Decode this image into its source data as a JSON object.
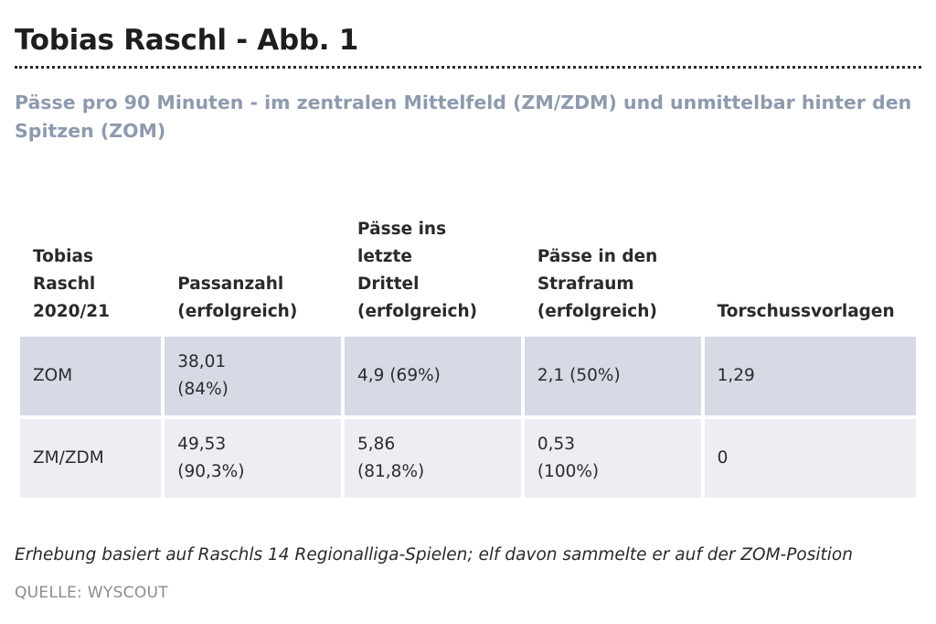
{
  "title": "Tobias Raschl - Abb. 1",
  "subtitle": "Pässe pro 90 Minuten - im zentralen Mittelfeld (ZM/ZDM) und unmittelbar hinter den Spitzen (ZOM)",
  "table": {
    "headers": [
      [
        "Tobias",
        "Raschl",
        "2020/21"
      ],
      [
        "Passanzahl",
        "(erfolgreich)"
      ],
      [
        "Pässe ins",
        "letzte",
        "Drittel",
        "(erfolgreich)"
      ],
      [
        "Pässe in den",
        "Strafraum",
        "(erfolgreich)"
      ],
      [
        "Torschussvorlagen"
      ]
    ],
    "rows": [
      [
        [
          "ZOM"
        ],
        [
          "38,01",
          "(84%)"
        ],
        [
          "4,9 (69%)"
        ],
        [
          "2,1 (50%)"
        ],
        [
          "1,29"
        ]
      ],
      [
        [
          "ZM/ZDM"
        ],
        [
          "49,53",
          "(90,3%)"
        ],
        [
          "5,86",
          "(81,8%)"
        ],
        [
          "0,53",
          "(100%)"
        ],
        [
          "0"
        ]
      ]
    ]
  },
  "footnote": "Erhebung basiert auf Raschls 14 Regionalliga-Spielen; elf davon sammelte er auf der ZOM-Position",
  "source": "QUELLE: WYSCOUT"
}
